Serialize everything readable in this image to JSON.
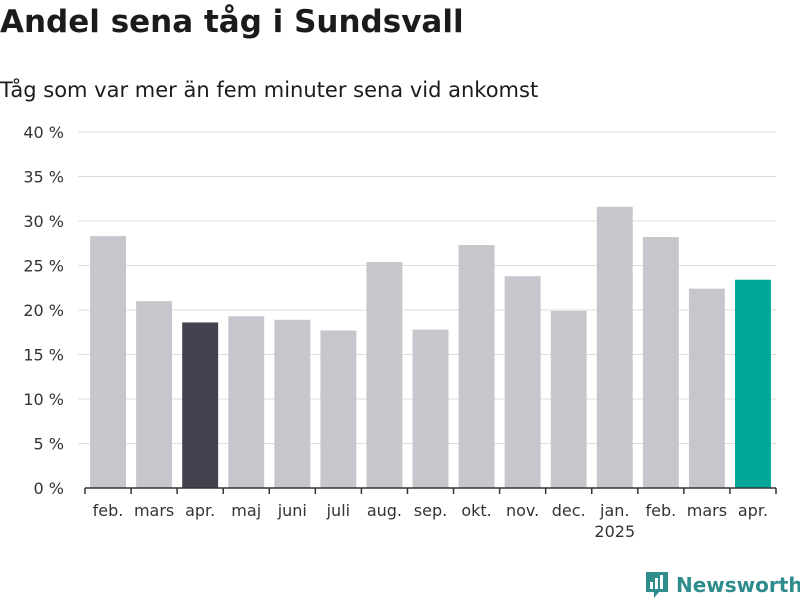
{
  "header": {
    "title": "Andel sena tåg i Sundsvall",
    "subtitle": "Tåg som var mer än fem minuter sena vid ankomst"
  },
  "brand": {
    "name": "Newsworthy",
    "icon": "newsworthy-logo-icon",
    "color": "#2f8c8c"
  },
  "colors": {
    "default_bar": "#c7c6cc",
    "highlight_dark": "#43414d",
    "highlight_current": "#00a69a",
    "grid": "#dddddd",
    "axis": "#333333"
  },
  "chart_data": {
    "type": "bar",
    "title": "Andel sena tåg i Sundsvall",
    "subtitle": "Tåg som var mer än fem minuter sena vid ankomst",
    "xlabel": "",
    "ylabel": "",
    "categories": [
      "feb.",
      "mars",
      "apr.",
      "maj",
      "juni",
      "juli",
      "aug.",
      "sep.",
      "okt.",
      "nov.",
      "dec.",
      "jan.",
      "feb.",
      "mars",
      "apr."
    ],
    "year_labels": [
      {
        "index": 11,
        "label": "2025"
      }
    ],
    "values": [
      28.3,
      21.0,
      18.6,
      19.3,
      18.9,
      17.7,
      25.4,
      17.8,
      27.3,
      23.8,
      19.9,
      31.6,
      28.2,
      22.4,
      23.4
    ],
    "highlight": {
      "2": "dark",
      "14": "current"
    },
    "ylim": [
      0,
      40
    ],
    "yticks": [
      0,
      5,
      10,
      15,
      20,
      25,
      30,
      35,
      40
    ],
    "ytick_labels": [
      "0 %",
      "5 %",
      "10 %",
      "15 %",
      "20 %",
      "25 %",
      "30 %",
      "35 %",
      "40 %"
    ],
    "grid": true,
    "legend": false
  }
}
